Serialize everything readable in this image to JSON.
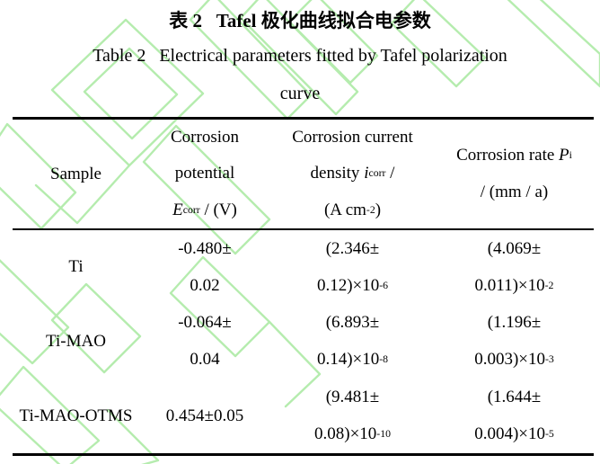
{
  "watermark": {
    "color": "#b5ecae",
    "description": "light-green diagonal chevron watermark pattern"
  },
  "title": {
    "zh": "表 2   Tafel 极化曲线拟合电参数",
    "en_line1": "Table 2   Electrical parameters fitted by Tafel polarization",
    "en_line2": "curve"
  },
  "table": {
    "header": {
      "sample": "Sample",
      "potential": [
        [
          {
            "s": "n",
            "v": "Corrosion"
          }
        ],
        [
          {
            "s": "n",
            "v": "potential"
          }
        ],
        [
          {
            "s": "i",
            "v": "E"
          },
          {
            "s": "sub",
            "v": "corr"
          },
          {
            "s": "n",
            "v": " / (V)"
          }
        ]
      ],
      "current": [
        [
          {
            "s": "n",
            "v": "Corrosion current"
          }
        ],
        [
          {
            "s": "n",
            "v": "density "
          },
          {
            "s": "i",
            "v": "i"
          },
          {
            "s": "sub",
            "v": "corr"
          },
          {
            "s": "n",
            "v": " /"
          }
        ],
        [
          {
            "s": "n",
            "v": "(A cm"
          },
          {
            "s": "sup",
            "v": "-2"
          },
          {
            "s": "n",
            "v": ")"
          }
        ]
      ],
      "rate": [
        [
          {
            "s": "n",
            "v": "Corrosion rate "
          },
          {
            "s": "i",
            "v": "P"
          },
          {
            "s": "sub",
            "v": "i"
          }
        ],
        [
          {
            "s": "n",
            "v": "/ (mm / a)"
          }
        ]
      ]
    },
    "rows": [
      {
        "sample": "Ti",
        "potential": [
          [
            {
              "s": "n",
              "v": "-0.480±"
            }
          ],
          [
            {
              "s": "n",
              "v": "0.02"
            }
          ]
        ],
        "current": [
          [
            {
              "s": "n",
              "v": "(2.346±"
            }
          ],
          [
            {
              "s": "n",
              "v": "0.12)×10"
            },
            {
              "s": "sup",
              "v": "-6"
            }
          ]
        ],
        "rate": [
          [
            {
              "s": "n",
              "v": "(4.069±"
            }
          ],
          [
            {
              "s": "n",
              "v": "0.011)×10"
            },
            {
              "s": "sup",
              "v": "-2"
            }
          ]
        ]
      },
      {
        "sample": "Ti-MAO",
        "potential": [
          [
            {
              "s": "n",
              "v": "-0.064±"
            }
          ],
          [
            {
              "s": "n",
              "v": "0.04"
            }
          ]
        ],
        "current": [
          [
            {
              "s": "n",
              "v": "(6.893±"
            }
          ],
          [
            {
              "s": "n",
              "v": "0.14)×10"
            },
            {
              "s": "sup",
              "v": "-8"
            }
          ]
        ],
        "rate": [
          [
            {
              "s": "n",
              "v": "(1.196±"
            }
          ],
          [
            {
              "s": "n",
              "v": "0.003)×10"
            },
            {
              "s": "sup",
              "v": "-3"
            }
          ]
        ]
      },
      {
        "sample": "Ti-MAO-OTMS",
        "potential": [
          [
            {
              "s": "n",
              "v": "0.454±0.05"
            }
          ]
        ],
        "current": [
          [
            {
              "s": "n",
              "v": "(9.481±"
            }
          ],
          [
            {
              "s": "n",
              "v": "0.08)×10"
            },
            {
              "s": "sup",
              "v": "-10"
            }
          ]
        ],
        "rate": [
          [
            {
              "s": "n",
              "v": "(1.644±"
            }
          ],
          [
            {
              "s": "n",
              "v": "0.004)×10"
            },
            {
              "s": "sup",
              "v": "-5"
            }
          ]
        ]
      }
    ]
  }
}
